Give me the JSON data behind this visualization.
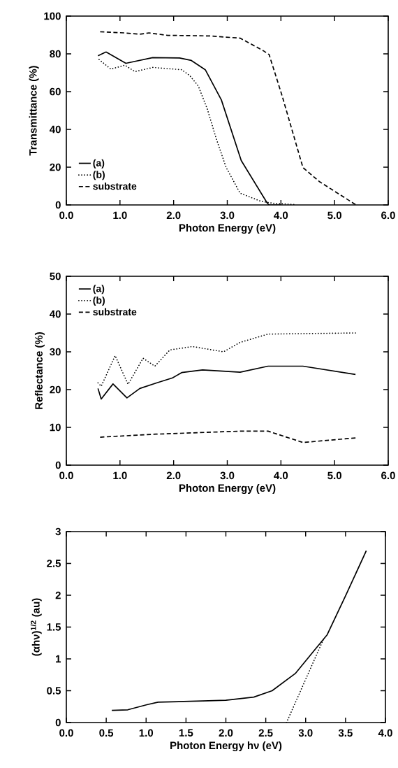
{
  "chart_data": [
    {
      "type": "line",
      "xlabel": "Photon Energy (eV)",
      "ylabel": "Transmittance (%)",
      "xlim": [
        0,
        6
      ],
      "ylim": [
        0,
        100
      ],
      "xticks": [
        {
          "value": 0,
          "label": "0.0"
        },
        {
          "value": 1,
          "label": "1.0"
        },
        {
          "value": 2,
          "label": "2.0"
        },
        {
          "value": 3,
          "label": "3.0"
        },
        {
          "value": 4,
          "label": "4.0"
        },
        {
          "value": 5,
          "label": "5.0"
        },
        {
          "value": 6,
          "label": "6.0"
        }
      ],
      "yticks": [
        0,
        20,
        40,
        60,
        80,
        100
      ],
      "legend": "bottom left",
      "series": [
        {
          "name": "(a)",
          "color": "#000000",
          "line_style": "solid",
          "x": [
            0.59,
            0.74,
            1.11,
            1.61,
            2.11,
            2.33,
            2.59,
            2.89,
            3.26,
            3.74,
            3.78,
            4.0
          ],
          "values": [
            79,
            81,
            75,
            78,
            77.8,
            76.5,
            71.6,
            55.6,
            23.5,
            1.2,
            0,
            0
          ]
        },
        {
          "name": "(b)",
          "color": "#000000",
          "line_style": "dotted",
          "x": [
            0.61,
            0.83,
            1.09,
            1.28,
            1.61,
            2.15,
            2.3,
            2.46,
            2.63,
            2.8,
            2.98,
            3.24,
            3.63,
            3.85,
            4.24
          ],
          "values": [
            77,
            71.9,
            74,
            70.6,
            72.8,
            71.6,
            68.5,
            63,
            50.6,
            34.6,
            19.8,
            6.2,
            1.9,
            0.9,
            0.2
          ]
        },
        {
          "name": "substrate",
          "color": "#000000",
          "line_style": "dashed",
          "x": [
            0.63,
            1.07,
            1.37,
            1.54,
            1.89,
            2.67,
            3.24,
            3.67,
            3.78,
            4.02,
            4.41,
            4.72,
            5.39
          ],
          "values": [
            91.7,
            91.1,
            90.4,
            91.1,
            89.8,
            89.5,
            88.3,
            81.7,
            79.6,
            58,
            19.8,
            12.3,
            0.2
          ]
        }
      ]
    },
    {
      "type": "line",
      "xlabel": "Photon Energy (eV)",
      "ylabel": "Reflectance (%)",
      "xlim": [
        0,
        6
      ],
      "ylim": [
        0,
        50
      ],
      "xticks": [
        {
          "value": 0,
          "label": "0.0"
        },
        {
          "value": 1,
          "label": "1.0"
        },
        {
          "value": 2,
          "label": "2.0"
        },
        {
          "value": 3,
          "label": "3.0"
        },
        {
          "value": 4,
          "label": "4.0"
        },
        {
          "value": 5,
          "label": "5.0"
        },
        {
          "value": 6,
          "label": "6.0"
        }
      ],
      "yticks": [
        0,
        10,
        20,
        30,
        40,
        50
      ],
      "legend": "top left",
      "series": [
        {
          "name": "(a)",
          "color": "#000000",
          "line_style": "solid",
          "x": [
            0.59,
            0.65,
            0.87,
            1.13,
            1.37,
            1.67,
            1.98,
            2.15,
            2.54,
            3.24,
            3.76,
            4.41,
            5.39
          ],
          "values": [
            20.3,
            17.5,
            21.5,
            17.8,
            20.3,
            21.7,
            23.1,
            24.5,
            25.2,
            24.6,
            26.2,
            26.2,
            24.0
          ]
        },
        {
          "name": "(b)",
          "color": "#000000",
          "line_style": "dotted",
          "x": [
            0.59,
            0.65,
            0.91,
            1.15,
            1.43,
            1.65,
            1.93,
            2.35,
            2.93,
            3.24,
            3.76,
            5.39
          ],
          "values": [
            21.8,
            20.9,
            29,
            21.4,
            28.3,
            26.2,
            30.5,
            31.4,
            30,
            32.5,
            34.7,
            35
          ]
        },
        {
          "name": "substrate",
          "color": "#000000",
          "line_style": "dashed",
          "x": [
            0.63,
            1.67,
            3.24,
            3.76,
            4.41,
            5.39
          ],
          "values": [
            7.4,
            8.2,
            9.0,
            9.0,
            6.0,
            7.2
          ]
        }
      ]
    },
    {
      "type": "line",
      "xlabel": "Photon Energy  hν (eV)",
      "ylabel": "(αhν)$^{1/2}$  (au)",
      "xlim": [
        0,
        4
      ],
      "ylim": [
        0,
        3
      ],
      "xticks": [
        {
          "value": 0,
          "label": "0.0"
        },
        {
          "value": 0.5,
          "label": "0.5"
        },
        {
          "value": 1,
          "label": "1.0"
        },
        {
          "value": 1.5,
          "label": "1.5"
        },
        {
          "value": 2,
          "label": "2.0"
        },
        {
          "value": 2.5,
          "label": "2.5"
        },
        {
          "value": 3,
          "label": "3.0"
        },
        {
          "value": 3.5,
          "label": "3.5"
        },
        {
          "value": 4,
          "label": "4.0"
        }
      ],
      "yticks": [
        0,
        0.5,
        1,
        1.5,
        2,
        2.5,
        3
      ],
      "series": [
        {
          "color": "#000000",
          "line_style": "solid",
          "x": [
            0.57,
            0.77,
            1.01,
            1.15,
            1.71,
            2.0,
            2.35,
            2.58,
            2.87,
            3.1,
            3.27,
            3.5,
            3.76
          ],
          "values": [
            0.19,
            0.2,
            0.28,
            0.32,
            0.34,
            0.35,
            0.4,
            0.5,
            0.77,
            1.12,
            1.38,
            1.99,
            2.7
          ]
        },
        {
          "color": "#000000",
          "line_style": "dotted",
          "x": [
            2.76,
            3.22
          ],
          "values": [
            0,
            1.3
          ]
        }
      ]
    }
  ]
}
